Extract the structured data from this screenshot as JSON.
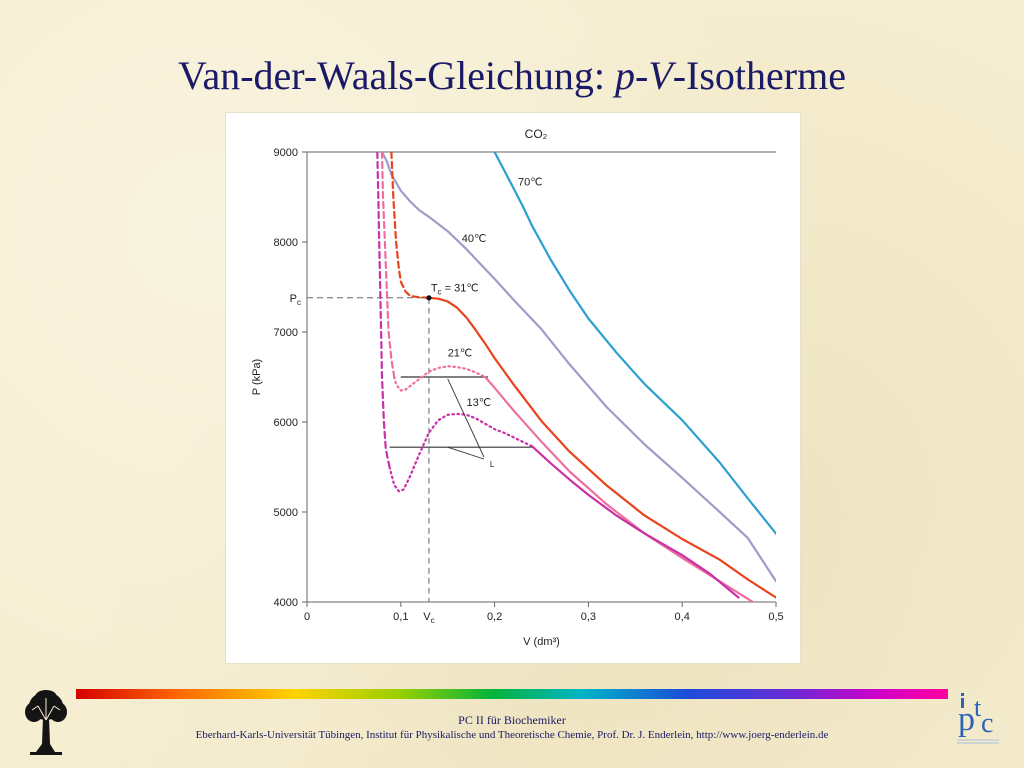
{
  "slide": {
    "title_prefix": "Van-der-Waals-Gleichung: ",
    "title_p": "p",
    "title_dash": "-",
    "title_v": "V",
    "title_suffix": "-Isotherme"
  },
  "footer": {
    "line1": "PC II für Biochemiker",
    "line2": "Eberhard-Karls-Universität Tübingen, Institut für Physikalische und Theoretische Chemie, Prof. Dr. J. Enderlein, http://www.joerg-enderlein.de"
  },
  "logos": {
    "left": "tree-logo",
    "right": "ipc-logo"
  },
  "colors": {
    "title": "#1a1a66",
    "iso70": "#2a9fd0",
    "iso40": "#a49ac8",
    "iso31": "#e8431c",
    "iso21": "#ee6f9e",
    "iso13": "#c832a6"
  },
  "chart_data": {
    "type": "line",
    "title": "CO₂",
    "xlabel": "V (dm³)",
    "ylabel": "P (kPa)",
    "xlim": [
      0,
      0.5
    ],
    "ylim": [
      4000,
      9000
    ],
    "xticks": [
      0,
      0.1,
      0.2,
      0.3,
      0.4,
      0.5
    ],
    "xtick_labels": [
      "0",
      "0,1",
      "0,2",
      "0,3",
      "0,4",
      "0,5"
    ],
    "yticks": [
      4000,
      5000,
      6000,
      7000,
      8000,
      9000
    ],
    "ytick_labels": [
      "4000",
      "5000",
      "6000",
      "7000",
      "8000",
      "9000"
    ],
    "grid": false,
    "critical_point": {
      "V": 0.13,
      "P": 7380,
      "label_P": "P",
      "label_P_sub": "c",
      "label_V": "V",
      "label_V_sub": "c"
    },
    "series": [
      {
        "name": "70℃",
        "color": "#2a9fd0",
        "segments": [
          {
            "style": "solid",
            "x": [
              0.2,
              0.21,
              0.22,
              0.23,
              0.24,
              0.26,
              0.28,
              0.3,
              0.33,
              0.36,
              0.4,
              0.44,
              0.47,
              0.5
            ],
            "y": [
              9000,
              8800,
              8600,
              8400,
              8180,
              7800,
              7460,
              7150,
              6770,
              6420,
              6020,
              5550,
              5150,
              4760
            ]
          }
        ]
      },
      {
        "name": "40℃",
        "color": "#a49ac8",
        "segments": [
          {
            "style": "solid",
            "x": [
              0.08,
              0.085,
              0.09,
              0.1,
              0.11,
              0.12,
              0.13,
              0.14,
              0.15,
              0.16,
              0.17,
              0.18,
              0.19,
              0.2,
              0.22,
              0.25,
              0.28,
              0.32,
              0.36,
              0.4,
              0.44,
              0.47,
              0.5
            ],
            "y": [
              9000,
              8900,
              8750,
              8570,
              8450,
              8350,
              8280,
              8200,
              8120,
              8020,
              7920,
              7810,
              7700,
              7590,
              7360,
              7030,
              6640,
              6160,
              5750,
              5380,
              5000,
              4710,
              4230
            ]
          }
        ]
      },
      {
        "name": "T_c = 31℃",
        "color": "#e8431c",
        "segments": [
          {
            "style": "dashed",
            "x": [
              0.09,
              0.092,
              0.095,
              0.098,
              0.1,
              0.105,
              0.11,
              0.12,
              0.13
            ],
            "y": [
              9000,
              8500,
              8000,
              7700,
              7560,
              7450,
              7400,
              7385,
              7380
            ]
          },
          {
            "style": "solid",
            "x": [
              0.13,
              0.14,
              0.15,
              0.16,
              0.17,
              0.18,
              0.19,
              0.2,
              0.22,
              0.25,
              0.28,
              0.32,
              0.36,
              0.4,
              0.44,
              0.47,
              0.5
            ],
            "y": [
              7380,
              7370,
              7340,
              7270,
              7160,
              7020,
              6870,
              6710,
              6420,
              6010,
              5670,
              5290,
              4960,
              4700,
              4470,
              4250,
              4050
            ]
          }
        ]
      },
      {
        "name": "21℃",
        "color": "#ee6f9e",
        "segments": [
          {
            "style": "dashed",
            "x": [
              0.08,
              0.081,
              0.083,
              0.085,
              0.087,
              0.09,
              0.093
            ],
            "y": [
              9000,
              8500,
              8000,
              7500,
              7000,
              6700,
              6500
            ]
          },
          {
            "style": "dotted",
            "x": [
              0.093,
              0.095,
              0.1,
              0.105,
              0.11,
              0.12,
              0.13,
              0.14,
              0.15,
              0.16,
              0.17,
              0.18,
              0.19
            ],
            "y": [
              6500,
              6420,
              6350,
              6360,
              6400,
              6480,
              6560,
              6600,
              6620,
              6610,
              6590,
              6550,
              6500
            ]
          },
          {
            "style": "solid",
            "x": [
              0.19,
              0.2,
              0.22,
              0.25,
              0.28,
              0.32,
              0.36,
              0.4,
              0.44,
              0.48
            ],
            "y": [
              6500,
              6380,
              6130,
              5780,
              5450,
              5080,
              4760,
              4490,
              4230,
              3970
            ]
          }
        ]
      },
      {
        "name": "13℃",
        "color": "#c832a6",
        "segments": [
          {
            "style": "dashed",
            "x": [
              0.075,
              0.076,
              0.077,
              0.078,
              0.079,
              0.08,
              0.082,
              0.084,
              0.088
            ],
            "y": [
              9000,
              8500,
              8000,
              7500,
              7000,
              6500,
              6000,
              5700,
              5500
            ]
          },
          {
            "style": "dotted",
            "x": [
              0.088,
              0.093,
              0.098,
              0.103,
              0.11,
              0.12,
              0.13,
              0.14,
              0.15,
              0.16,
              0.17,
              0.18,
              0.19,
              0.2,
              0.21,
              0.22,
              0.23,
              0.24
            ],
            "y": [
              5500,
              5300,
              5230,
              5250,
              5400,
              5650,
              5880,
              6020,
              6080,
              6090,
              6080,
              6040,
              5980,
              5920,
              5880,
              5830,
              5780,
              5730
            ]
          },
          {
            "style": "solid",
            "x": [
              0.24,
              0.26,
              0.28,
              0.3,
              0.33,
              0.36,
              0.4,
              0.43,
              0.46
            ],
            "y": [
              5730,
              5540,
              5360,
              5190,
              4960,
              4760,
              4520,
              4310,
              4050
            ]
          }
        ]
      }
    ],
    "tie_lines": [
      {
        "x": [
          0.1,
          0.193
        ],
        "y": 6500
      },
      {
        "x": [
          0.088,
          0.24
        ],
        "y": 5720
      }
    ],
    "annotations": [
      {
        "text": "70℃",
        "x": 0.225,
        "y": 8630
      },
      {
        "text": "40℃",
        "x": 0.165,
        "y": 8000
      },
      {
        "text": "T",
        "sub": "c",
        "rest": " = 31℃",
        "x": 0.132,
        "y": 7450
      },
      {
        "text": "21℃",
        "x": 0.15,
        "y": 6730
      },
      {
        "text": "13℃",
        "x": 0.17,
        "y": 6180
      },
      {
        "text": "L",
        "x": 0.195,
        "y": 5500
      }
    ]
  }
}
